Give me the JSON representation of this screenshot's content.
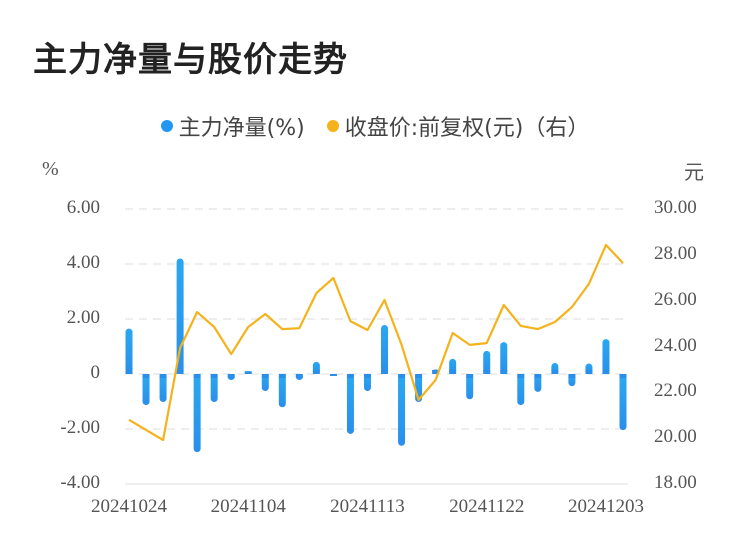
{
  "title": "主力净量与股价走势",
  "legend": [
    {
      "label": "主力净量(%)",
      "color": "#2196F3"
    },
    {
      "label": "收盘价:前复权(元)（右）",
      "color": "#F5B21B"
    }
  ],
  "axes": {
    "left_unit": "%",
    "right_unit": "元",
    "left_ticks": [
      "6.00",
      "4.00",
      "2.00",
      "0",
      "-2.00",
      "-4.00"
    ],
    "right_ticks": [
      "30.00",
      "28.00",
      "26.00",
      "24.00",
      "22.00",
      "20.00",
      "18.00"
    ],
    "x_ticks": [
      "20241024",
      "20241104",
      "20241113",
      "20241122",
      "20241203"
    ]
  },
  "chart_data": {
    "type": "bar+line",
    "title": "主力净量与股价走势",
    "legend_position": "top",
    "grid": true,
    "x_tick_labels": [
      "20241024",
      "20241104",
      "20241113",
      "20241122",
      "20241203"
    ],
    "x_tick_indices": [
      0,
      7,
      14,
      21,
      28
    ],
    "series": [
      {
        "name": "主力净量(%)",
        "type": "bar",
        "axis": "left",
        "color": "#2196F3",
        "values": [
          1.65,
          -1.13,
          -1.02,
          4.2,
          -2.84,
          -1.02,
          -0.22,
          0.1,
          -0.62,
          -1.21,
          -0.22,
          0.44,
          -0.07,
          -2.18,
          -0.62,
          1.78,
          -2.61,
          -1.02,
          0.17,
          0.55,
          -0.92,
          0.84,
          1.16,
          -1.13,
          -0.65,
          0.4,
          -0.44,
          0.38,
          1.27,
          -2.04
        ]
      },
      {
        "name": "收盘价:前复权(元)（右）",
        "type": "line",
        "axis": "right",
        "color": "#F5B21B",
        "values": [
          20.8,
          20.36,
          19.92,
          23.94,
          25.5,
          24.85,
          23.67,
          24.85,
          25.42,
          24.76,
          24.8,
          26.33,
          26.99,
          25.11,
          24.72,
          26.03,
          24.07,
          21.67,
          22.54,
          24.59,
          24.07,
          24.15,
          25.81,
          24.9,
          24.76,
          25.07,
          25.72,
          26.73,
          28.43,
          27.64
        ]
      }
    ],
    "ylabel_left": "%",
    "ylabel_right": "元",
    "ylim_left": [
      -4,
      6
    ],
    "ylim_right": [
      18,
      30
    ]
  }
}
